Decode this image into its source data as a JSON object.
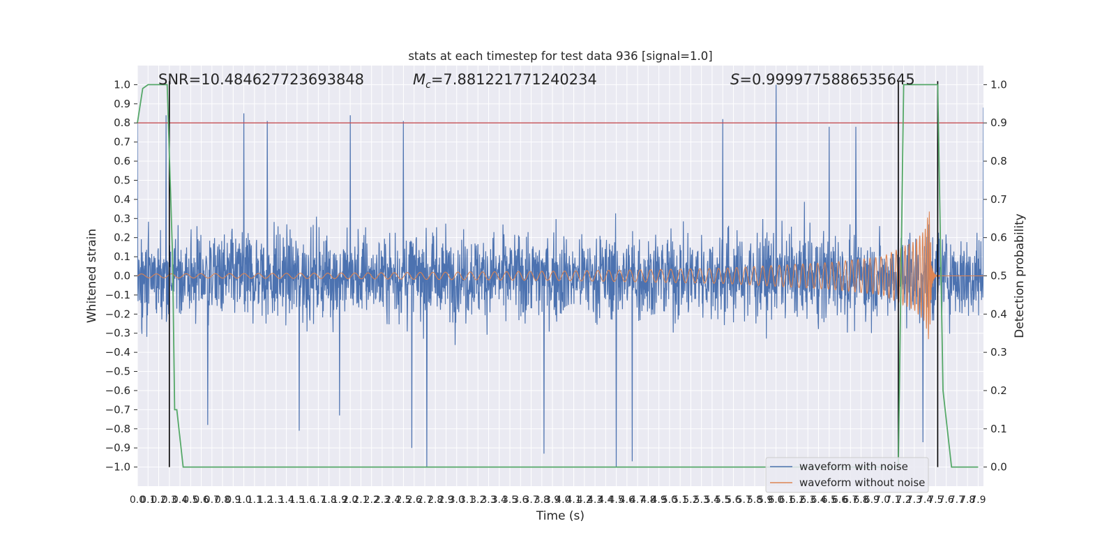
{
  "chart_data": {
    "type": "line",
    "title": "stats at each timestep for test data 936 [signal=1.0]",
    "xlabel": "Time (s)",
    "ylabel": "Whitened strain",
    "y2label": "Detection probability",
    "xlim": [
      0.0,
      7.95
    ],
    "ylim": [
      -1.1,
      1.1
    ],
    "y2lim": [
      -0.05,
      1.05
    ],
    "x_ticks": [
      0.0,
      0.1,
      0.2,
      0.3,
      0.4,
      0.5,
      0.6,
      0.7,
      0.8,
      0.9,
      1.0,
      1.1,
      1.2,
      1.3,
      1.4,
      1.5,
      1.6,
      1.7,
      1.8,
      1.9,
      2.0,
      2.1,
      2.2,
      2.3,
      2.4,
      2.5,
      2.6,
      2.7,
      2.8,
      2.9,
      3.0,
      3.1,
      3.2,
      3.3,
      3.4,
      3.5,
      3.6,
      3.7,
      3.8,
      3.9,
      4.0,
      4.1,
      4.2,
      4.3,
      4.4,
      4.5,
      4.6,
      4.7,
      4.8,
      4.9,
      5.0,
      5.1,
      5.2,
      5.3,
      5.4,
      5.5,
      5.6,
      5.7,
      5.8,
      5.9,
      6.0,
      6.1,
      6.2,
      6.3,
      6.4,
      6.5,
      6.6,
      6.7,
      6.8,
      6.9,
      7.0,
      7.1,
      7.2,
      7.3,
      7.4,
      7.5,
      7.6,
      7.7,
      7.8,
      7.9
    ],
    "y_ticks": [
      -1.0,
      -0.9,
      -0.8,
      -0.7,
      -0.6,
      -0.5,
      -0.4,
      -0.3,
      -0.2,
      -0.1,
      0.0,
      0.1,
      0.2,
      0.3,
      0.4,
      0.5,
      0.6,
      0.7,
      0.8,
      0.9,
      1.0
    ],
    "y_tick_labels": [
      "−1.0",
      "−0.9",
      "−0.8",
      "−0.7",
      "−0.6",
      "−0.5",
      "−0.4",
      "−0.3",
      "−0.2",
      "−0.1",
      "0.0",
      "0.1",
      "0.2",
      "0.3",
      "0.4",
      "0.5",
      "0.6",
      "0.7",
      "0.8",
      "0.9",
      "1.0"
    ],
    "y2_ticks": [
      0.0,
      0.1,
      0.2,
      0.3,
      0.4,
      0.5,
      0.6,
      0.7,
      0.8,
      0.9,
      1.0
    ],
    "y2_tick_labels": [
      "0.0",
      "0.1",
      "0.2",
      "0.3",
      "0.4",
      "0.5",
      "0.6",
      "0.7",
      "0.8",
      "0.9",
      "1.0"
    ],
    "threshold": 0.8,
    "event_lines_x": [
      0.3,
      7.15,
      7.52
    ],
    "annotations": {
      "snr": "SNR=10.484627723693848",
      "mc_symbol": "M",
      "mc_sub": "c",
      "mc_value": "=7.881221771240234",
      "s_symbol": "S",
      "s_value": "=0.9999775886535645"
    },
    "legend": {
      "position": "lower-right",
      "entries": [
        "waveform with noise",
        "waveform without noise"
      ]
    },
    "series": [
      {
        "name": "waveform with noise",
        "color": "#4c72b0",
        "axis": "left",
        "description": "whitened noisy strain, range approx -1.0 to 1.0",
        "peaks": [
          [
            0.0,
            0.8
          ],
          [
            0.27,
            0.84
          ],
          [
            1.0,
            0.85
          ],
          [
            1.22,
            0.81
          ],
          [
            2.0,
            0.84
          ],
          [
            2.5,
            0.81
          ],
          [
            5.5,
            0.82
          ],
          [
            6.0,
            1.0
          ],
          [
            6.5,
            0.78
          ],
          [
            6.75,
            0.78
          ],
          [
            7.95,
            0.88
          ]
        ],
        "troughs": [
          [
            0.66,
            -0.78
          ],
          [
            1.52,
            -0.81
          ],
          [
            1.9,
            -0.73
          ],
          [
            2.58,
            -0.9
          ],
          [
            2.72,
            -1.0
          ],
          [
            3.82,
            -0.93
          ],
          [
            4.5,
            -1.0
          ],
          [
            4.65,
            -0.97
          ],
          [
            7.38,
            -0.87
          ]
        ]
      },
      {
        "name": "waveform without noise",
        "color": "#dd8452",
        "axis": "left",
        "description": "chirp signal with growing amplitude, merger near 7.55 s",
        "envelope": [
          [
            0.0,
            0.01
          ],
          [
            2.0,
            0.015
          ],
          [
            4.0,
            0.025
          ],
          [
            5.5,
            0.04
          ],
          [
            6.5,
            0.07
          ],
          [
            7.0,
            0.1
          ],
          [
            7.3,
            0.18
          ],
          [
            7.4,
            0.24
          ],
          [
            7.44,
            0.35
          ],
          [
            7.47,
            0.0
          ]
        ]
      },
      {
        "name": "",
        "color": "#55a868",
        "axis": "right",
        "description": "detection probability",
        "points": [
          [
            0.0,
            0.9
          ],
          [
            0.05,
            0.99
          ],
          [
            0.1,
            1.0
          ],
          [
            0.28,
            1.0
          ],
          [
            0.33,
            0.55
          ],
          [
            0.35,
            0.15
          ],
          [
            0.37,
            0.15
          ],
          [
            0.43,
            0.0
          ],
          [
            7.15,
            0.0
          ],
          [
            7.2,
            1.0
          ],
          [
            7.52,
            1.0
          ],
          [
            7.57,
            0.2
          ],
          [
            7.65,
            0.0
          ],
          [
            7.9,
            0.0
          ]
        ]
      }
    ],
    "colors": {
      "background": "#eaeaf2",
      "grid": "#ffffff",
      "threshold_line": "#c44e52",
      "event_lines": "#000000"
    }
  }
}
